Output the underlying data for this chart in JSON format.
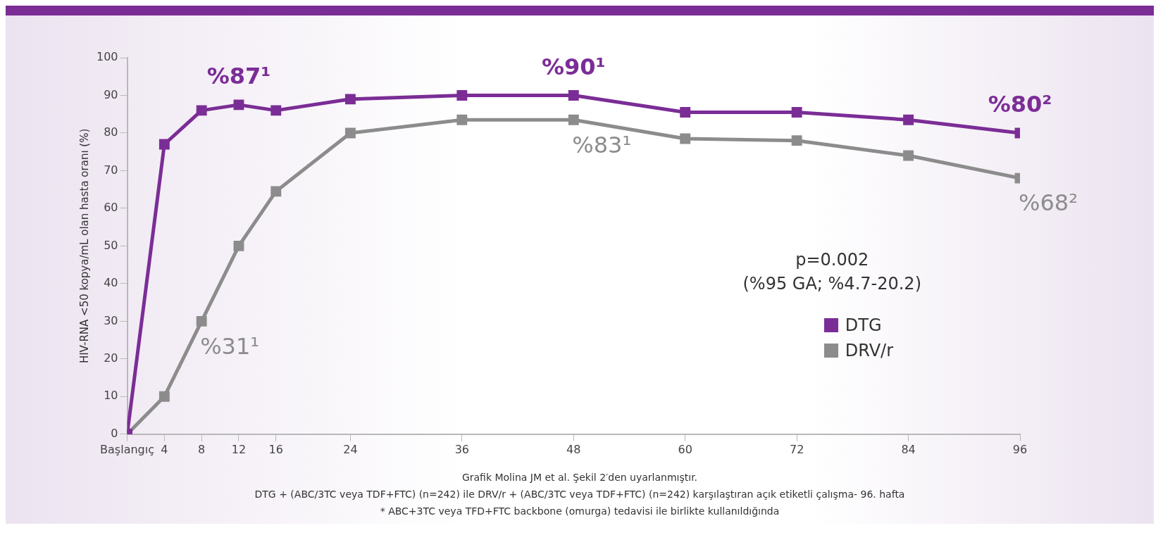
{
  "chart_data": {
    "type": "line",
    "ylabel": "HIV-RNA <50 kopya/mL olan hasta oranı (%)",
    "x": [
      0,
      4,
      8,
      12,
      16,
      24,
      36,
      48,
      60,
      72,
      84,
      96
    ],
    "series": [
      {
        "name": "DTG",
        "color": "#7b2d96",
        "values": [
          0,
          77,
          86,
          87.5,
          86,
          89,
          90,
          90,
          85.5,
          85.5,
          83.5,
          80
        ]
      },
      {
        "name": "DRV/r",
        "color": "#8c8c8c",
        "values": [
          0,
          10,
          30,
          50,
          64.5,
          80,
          83.5,
          83.5,
          78.5,
          78,
          74,
          68
        ]
      }
    ],
    "xlim": [
      0,
      96
    ],
    "xticks": [
      {
        "value": 0,
        "label": "Başlangıç"
      },
      4,
      8,
      12,
      16,
      24,
      36,
      48,
      60,
      72,
      84,
      96
    ],
    "ylim": [
      0,
      100
    ],
    "yticks": [
      0,
      10,
      20,
      30,
      40,
      50,
      60,
      70,
      80,
      90,
      100
    ],
    "grid": false,
    "legend": "bottom right",
    "marker": "square",
    "line_style": "solid",
    "annotations": [
      {
        "text": "%87¹",
        "x": 12,
        "y": 87.5
      },
      {
        "text": "%90¹",
        "x": 48,
        "y": 90
      },
      {
        "text": "%80²",
        "x": 96,
        "y": 80
      },
      {
        "text": "%31¹",
        "x": 8,
        "y": 30
      },
      {
        "text": "%83¹",
        "x": 48,
        "y": 83.5
      },
      {
        "text": "%68²",
        "x": 96,
        "y": 68
      },
      "p=0.002",
      "(%95 GA; %4.7-20.2)",
      "Grafik Molina JM et al. Şekil 2′den uyarlanmıştır.",
      "DTG + (ABC/3TC veya TDF+FTC) (n=242) ile DRV/r + (ABC/3TC veya TDF+FTC) (n=242) karşılaştıran açık etiketli çalışma- 96. hafta",
      "* ABC+3TC veya TFD+FTC backbone (omurga) tedavisi ile birlikte kullanıldığında"
    ]
  }
}
